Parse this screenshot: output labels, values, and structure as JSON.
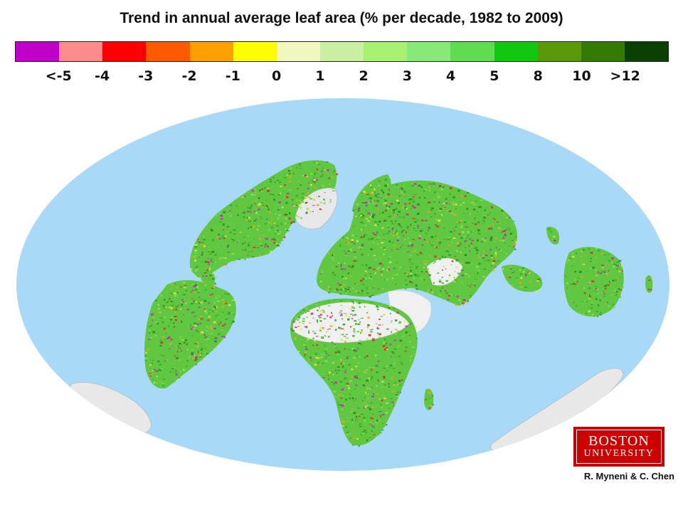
{
  "title": "Trend in annual average leaf area (% per decade, 1982 to 2009)",
  "legend": {
    "colors": [
      "#c000c8",
      "#ff8c8c",
      "#ff0000",
      "#ff5a00",
      "#ffa000",
      "#ffff00",
      "#f0f8c0",
      "#c8f0a0",
      "#a8f070",
      "#88e878",
      "#60dc50",
      "#10c810",
      "#5a9a0a",
      "#347a04",
      "#0a4000"
    ],
    "labels": [
      "<-5",
      "-4",
      "-3",
      "-2",
      "-1",
      "0",
      "1",
      "2",
      "3",
      "4",
      "5",
      "8",
      "10",
      ">12"
    ]
  },
  "map": {
    "ocean_color": "#a8daf8",
    "desert_color": "#f0f0f0",
    "ice_color": "#e8e8e8",
    "vegetation_colors": [
      "#38a828",
      "#60c840",
      "#90d860",
      "#1e8a1e"
    ],
    "decline_colors": [
      "#e02828",
      "#f0a020",
      "#e8e840",
      "#c820c8"
    ]
  },
  "logo": {
    "line1": "BOSTON",
    "line2": "UNIVERSITY",
    "color": "#cc0000"
  },
  "credit": "R. Myneni & C. Chen"
}
